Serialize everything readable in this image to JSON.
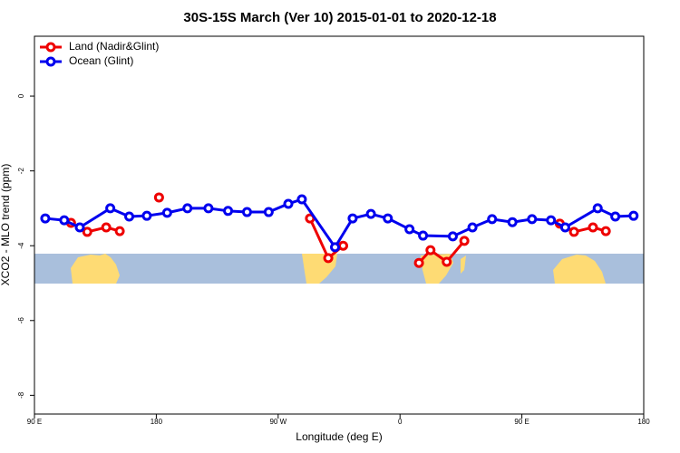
{
  "chart_data": {
    "type": "line",
    "title": "30S-15S March (Ver 10)   2015-01-01 to 2020-12-18",
    "x_label": "Longitude (deg E)",
    "y_label": "XCO2 - MLO trend (ppm)",
    "xlim": [
      90,
      540
    ],
    "ylim": [
      -8.5,
      1.6
    ],
    "xticks": [
      {
        "value": 90,
        "label": "90 E"
      },
      {
        "value": 180,
        "label": "180"
      },
      {
        "value": 270,
        "label": "90 W"
      },
      {
        "value": 360,
        "label": "0"
      },
      {
        "value": 450,
        "label": "90 E"
      },
      {
        "value": 540,
        "label": "180"
      }
    ],
    "yticks": [
      0,
      -2,
      -4,
      -6,
      -8
    ],
    "legend": "top-left",
    "series": [
      {
        "name": "Land (Nadir&Glint)",
        "color": "#ee0000",
        "x": [
          117,
          129,
          143,
          153,
          null,
          182,
          null,
          293.5,
          307,
          318,
          null,
          374,
          382.5,
          394.5,
          407.5,
          null,
          478,
          488.5,
          502.5,
          512
        ],
        "values": [
          -3.39,
          -3.63,
          -3.51,
          -3.61,
          null,
          -2.71,
          null,
          -3.27,
          -4.33,
          -4.0,
          null,
          -4.46,
          -4.12,
          -4.43,
          -3.87,
          null,
          -3.41,
          -3.63,
          -3.51,
          -3.61
        ]
      },
      {
        "name": "Ocean (Glint)",
        "color": "#0000ee",
        "x": [
          98,
          112,
          123.5,
          146,
          160,
          173,
          188,
          203,
          218.5,
          233,
          247,
          263,
          277.5,
          287.5,
          312,
          325,
          338.5,
          351,
          367,
          377,
          399,
          413.5,
          428,
          443,
          457.5,
          471.5,
          482,
          506,
          519,
          532.5
        ],
        "values": [
          -3.27,
          -3.32,
          -3.51,
          -3.0,
          -3.22,
          -3.2,
          -3.12,
          -3.0,
          -3.0,
          -3.07,
          -3.1,
          -3.1,
          -2.88,
          -2.76,
          -4.04,
          -3.27,
          -3.15,
          -3.27,
          -3.56,
          -3.73,
          -3.75,
          -3.51,
          -3.29,
          -3.37,
          -3.29,
          -3.32,
          -3.51,
          -3.0,
          -3.22,
          -3.2
        ]
      }
    ]
  }
}
